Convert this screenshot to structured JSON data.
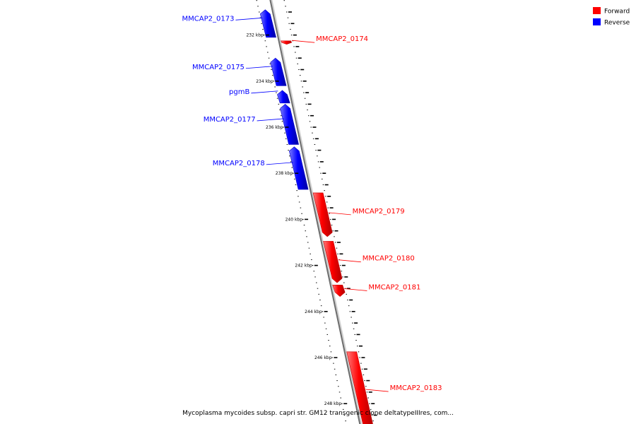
{
  "map": {
    "kbp_start": 231.0,
    "kbp_end": 249.0,
    "colors": {
      "forward": "#ff0000",
      "reverse": "#0000ff"
    },
    "genes": [
      {
        "name": "MMCAP2_0173",
        "strand": "reverse",
        "start": 230.9,
        "end": 232.1
      },
      {
        "name": "MMCAP2_0174",
        "strand": "forward",
        "start": 232.25,
        "end": 232.4
      },
      {
        "name": "MMCAP2_0175",
        "strand": "reverse",
        "start": 233.0,
        "end": 234.2
      },
      {
        "name": "pgmB",
        "strand": "reverse",
        "start": 234.4,
        "end": 234.95
      },
      {
        "name": "MMCAP2_0177",
        "strand": "reverse",
        "start": 235.0,
        "end": 236.75
      },
      {
        "name": "MMCAP2_0178",
        "strand": "reverse",
        "start": 236.85,
        "end": 238.7
      },
      {
        "name": "MMCAP2_0179",
        "strand": "forward",
        "start": 238.85,
        "end": 240.75
      },
      {
        "name": "MMCAP2_0180",
        "strand": "forward",
        "start": 240.95,
        "end": 242.75
      },
      {
        "name": "MMCAP2_0181",
        "strand": "forward",
        "start": 242.85,
        "end": 243.35
      },
      {
        "name": "MMCAP2_0183",
        "strand": "forward",
        "start": 245.75,
        "end": 249.2
      }
    ],
    "kbp_labels": [
      "232 kbp",
      "234 kbp",
      "236 kbp",
      "238 kbp",
      "240 kbp",
      "242 kbp",
      "244 kbp",
      "246 kbp",
      "248 kbp"
    ],
    "kbp_label_values": [
      232,
      234,
      236,
      238,
      240,
      242,
      244,
      246,
      248
    ]
  },
  "legend": {
    "forward_label": "Forward",
    "reverse_label": "Reverse"
  },
  "caption": "Mycoplasma mycoides subsp. capri str. GM12 transgenic clone deltatypeIIIres, com..."
}
